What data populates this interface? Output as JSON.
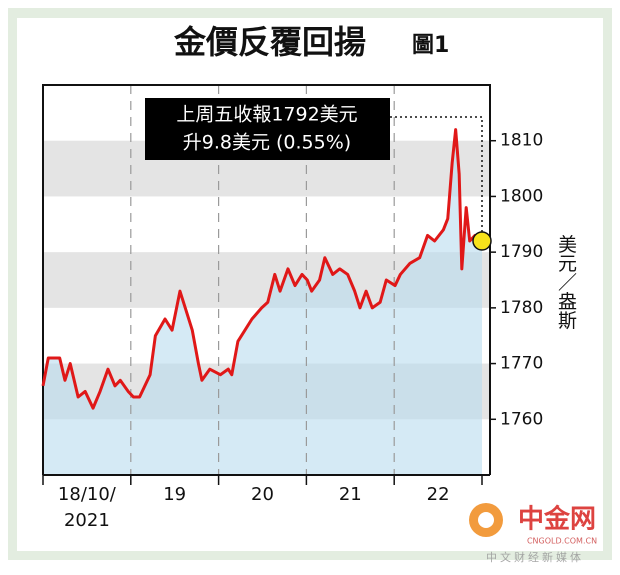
{
  "chart_data": {
    "type": "line",
    "title": "金價反覆回揚",
    "figure_label": "圖1",
    "y_label": "美元／盎斯",
    "annotation": [
      "上周五收報1792美元",
      "升9.8美元 (0.55%)"
    ],
    "categories": [
      "18/10/",
      "19",
      "20",
      "21",
      "22"
    ],
    "category_sublabel": "2021",
    "xlim": [
      0,
      5
    ],
    "ylim": [
      1750,
      1820
    ],
    "yticks": [
      1760,
      1770,
      1780,
      1790,
      1800,
      1810
    ],
    "grid": true,
    "series": [
      {
        "name": "金價",
        "color": "#e01818",
        "x": [
          0,
          0.06,
          0.19,
          0.25,
          0.31,
          0.4,
          0.48,
          0.57,
          0.65,
          0.74,
          0.82,
          0.88,
          0.97,
          1.03,
          1.1,
          1.22,
          1.28,
          1.39,
          1.47,
          1.56,
          1.62,
          1.7,
          1.77,
          1.81,
          1.9,
          2.02,
          2.11,
          2.15,
          2.22,
          2.3,
          2.38,
          2.49,
          2.56,
          2.64,
          2.7,
          2.79,
          2.87,
          2.95,
          3.01,
          3.06,
          3.15,
          3.21,
          3.3,
          3.38,
          3.47,
          3.55,
          3.61,
          3.68,
          3.75,
          3.84,
          3.91,
          4.01,
          4.07,
          4.18,
          4.29,
          4.38,
          4.46,
          4.56,
          4.61,
          4.66,
          4.7,
          4.74,
          4.77,
          4.82,
          4.86,
          4.92,
          5
        ],
        "values": [
          1766,
          1771,
          1771,
          1767,
          1770,
          1764,
          1765,
          1762,
          1765,
          1769,
          1766,
          1767,
          1765,
          1764,
          1764,
          1768,
          1775,
          1778,
          1776,
          1783,
          1780,
          1776,
          1770,
          1767,
          1769,
          1768,
          1769,
          1768,
          1774,
          1776,
          1778,
          1780,
          1781,
          1786,
          1783,
          1787,
          1784,
          1786,
          1785,
          1783,
          1785,
          1789,
          1786,
          1787,
          1786,
          1783,
          1780,
          1783,
          1780,
          1781,
          1785,
          1784,
          1786,
          1788,
          1789,
          1793,
          1792,
          1794,
          1796,
          1806,
          1812,
          1804,
          1787,
          1798,
          1792,
          1793,
          1792
        ]
      }
    ]
  },
  "watermark": {
    "brand": "中金网",
    "url": "CNGOLD.COM.CN",
    "tagline": "中文财经新媒体"
  }
}
